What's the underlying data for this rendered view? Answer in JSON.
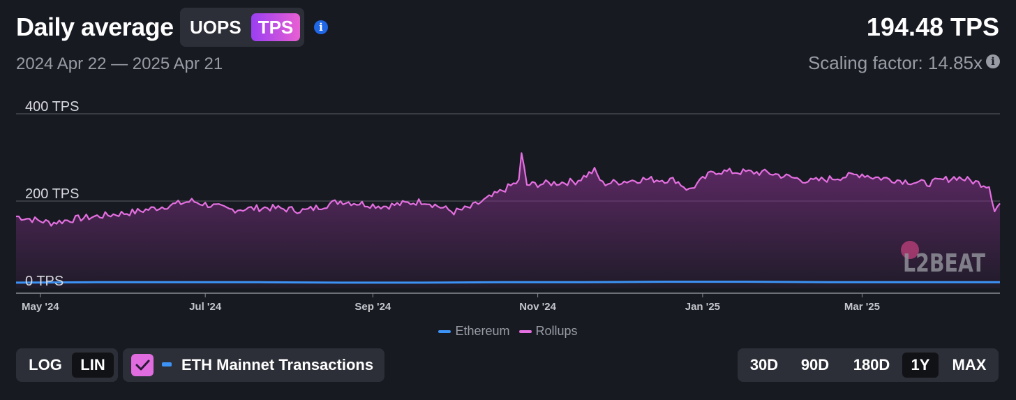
{
  "header": {
    "title": "Daily average",
    "metric_options": [
      "UOPS",
      "TPS"
    ],
    "active_metric": "TPS",
    "date_range": "2024 Apr 22 — 2025 Apr 21",
    "current_value": "194.48 TPS",
    "scaling_factor": "Scaling factor: 14.85x"
  },
  "watermark": "L2BEAT",
  "scale_options": [
    "LOG",
    "LIN"
  ],
  "active_scale": "LIN",
  "mainnet_toggle": {
    "label": "ETH Mainnet Transactions",
    "checked": true
  },
  "range_options": [
    "30D",
    "90D",
    "180D",
    "1Y",
    "MAX"
  ],
  "active_range": "1Y",
  "colors": {
    "ethereum": "#3d93f5",
    "rollups": "#e46fe0",
    "accent": "#a84ff0",
    "background": "#181a22"
  },
  "chart_data": {
    "type": "area",
    "x_range": [
      "2024-04-22",
      "2025-04-21"
    ],
    "x_ticks": [
      "May '24",
      "Jul '24",
      "Sep '24",
      "Nov '24",
      "Jan '25",
      "Mar '25"
    ],
    "y_ticks": [
      "0 TPS",
      "200 TPS",
      "400 TPS"
    ],
    "ylim": [
      0,
      400
    ],
    "legend_position": "bottom-center",
    "series": [
      {
        "name": "Ethereum",
        "color": "#3d93f5",
        "x": [
          "2024-04-22",
          "2024-05-22",
          "2024-06-21",
          "2024-07-21",
          "2024-08-20",
          "2024-09-19",
          "2024-10-19",
          "2024-11-18",
          "2024-12-18",
          "2025-01-17",
          "2025-02-16",
          "2025-03-18",
          "2025-04-21"
        ],
        "y": [
          13,
          14,
          14,
          14,
          13,
          13,
          14,
          14,
          15,
          15,
          14,
          14,
          14
        ]
      },
      {
        "name": "Rollups",
        "color": "#e46fe0",
        "x": [
          "2024-04-22",
          "2024-05-05",
          "2024-05-15",
          "2024-06-05",
          "2024-06-26",
          "2024-07-10",
          "2024-07-24",
          "2024-08-07",
          "2024-08-20",
          "2024-09-05",
          "2024-09-20",
          "2024-10-01",
          "2024-10-07",
          "2024-10-15",
          "2024-10-22",
          "2024-10-25",
          "2024-10-26",
          "2024-10-28",
          "2024-11-15",
          "2024-11-22",
          "2024-11-25",
          "2024-12-10",
          "2024-12-22",
          "2024-12-27",
          "2025-01-05",
          "2025-01-25",
          "2025-02-10",
          "2025-03-01",
          "2025-03-05",
          "2025-03-25",
          "2025-04-05",
          "2025-04-17",
          "2025-04-19",
          "2025-04-21"
        ],
        "y": [
          165,
          150,
          160,
          175,
          200,
          180,
          185,
          178,
          200,
          188,
          200,
          175,
          185,
          210,
          235,
          245,
          310,
          237,
          245,
          270,
          240,
          250,
          248,
          225,
          268,
          265,
          245,
          262,
          255,
          240,
          255,
          235,
          180,
          194
        ]
      }
    ]
  }
}
